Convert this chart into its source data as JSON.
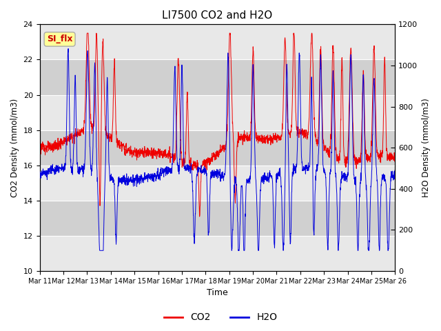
{
  "title": "LI7500 CO2 and H2O",
  "xlabel": "Time",
  "ylabel_left": "CO2 Density (mmol/m3)",
  "ylabel_right": "H2O Density (mmol/m3)",
  "co2_ylim": [
    10,
    24
  ],
  "h2o_ylim": [
    0,
    1200
  ],
  "co2_yticks": [
    10,
    12,
    14,
    16,
    18,
    20,
    22,
    24
  ],
  "h2o_yticks": [
    0,
    200,
    400,
    600,
    800,
    1000,
    1200
  ],
  "xtick_labels": [
    "Mar 11",
    "Mar 12",
    "Mar 13",
    "Mar 14",
    "Mar 15",
    "Mar 16",
    "Mar 17",
    "Mar 18",
    "Mar 19",
    "Mar 20",
    "Mar 21",
    "Mar 22",
    "Mar 23",
    "Mar 24",
    "Mar 25",
    "Mar 26"
  ],
  "co2_color": "#ee0000",
  "h2o_color": "#0000dd",
  "annotation_text": "SI_flx",
  "bg_color": "#ffffff",
  "band_colors": [
    "#e8e8e8",
    "#d0d0d0"
  ],
  "linewidth": 0.7,
  "num_points": 2000
}
